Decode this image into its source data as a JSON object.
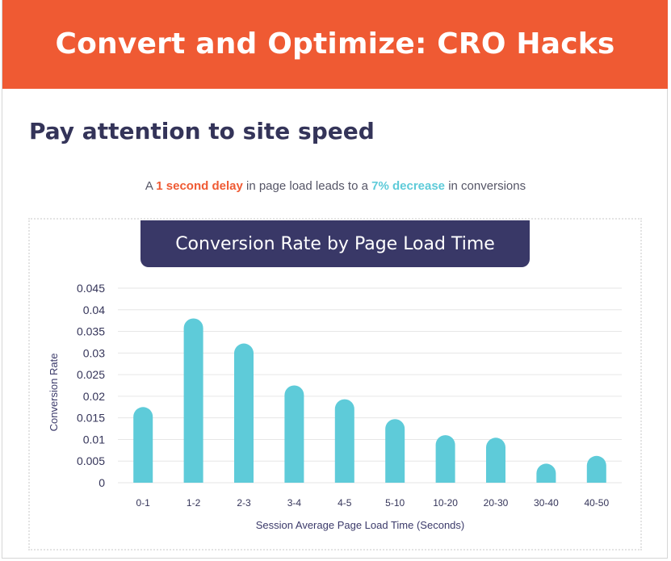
{
  "banner": {
    "title": "Convert and Optimize: CRO Hacks"
  },
  "section": {
    "heading": "Pay attention to site speed"
  },
  "subtitle": {
    "prefix": "A ",
    "highlight1": "1 second delay",
    "middle": " in page load leads to a ",
    "highlight2": "7% decrease",
    "suffix": " in conversions"
  },
  "colors": {
    "banner": "#ef5a33",
    "heading": "#343459",
    "bar": "#5ecbd9",
    "title_box": "#393867"
  },
  "chart_data": {
    "type": "bar",
    "title": "Conversion Rate by Page Load Time",
    "xlabel": "Session Average Page Load Time (Seconds)",
    "ylabel": "Conversion Rate",
    "categories": [
      "0-1",
      "1-2",
      "2-3",
      "3-4",
      "4-5",
      "5-10",
      "10-20",
      "20-30",
      "30-40",
      "40-50"
    ],
    "values": [
      0.0175,
      0.038,
      0.0322,
      0.0225,
      0.0193,
      0.0147,
      0.011,
      0.0104,
      0.0044,
      0.0062
    ],
    "yticks": [
      "0",
      "0.005",
      "0.01",
      "0.015",
      "0.02",
      "0.025",
      "0.03",
      "0.035",
      "0.04",
      "0.045"
    ],
    "ylim": [
      0,
      0.045
    ],
    "grid": true,
    "bar_color": "#5ecbd9"
  }
}
